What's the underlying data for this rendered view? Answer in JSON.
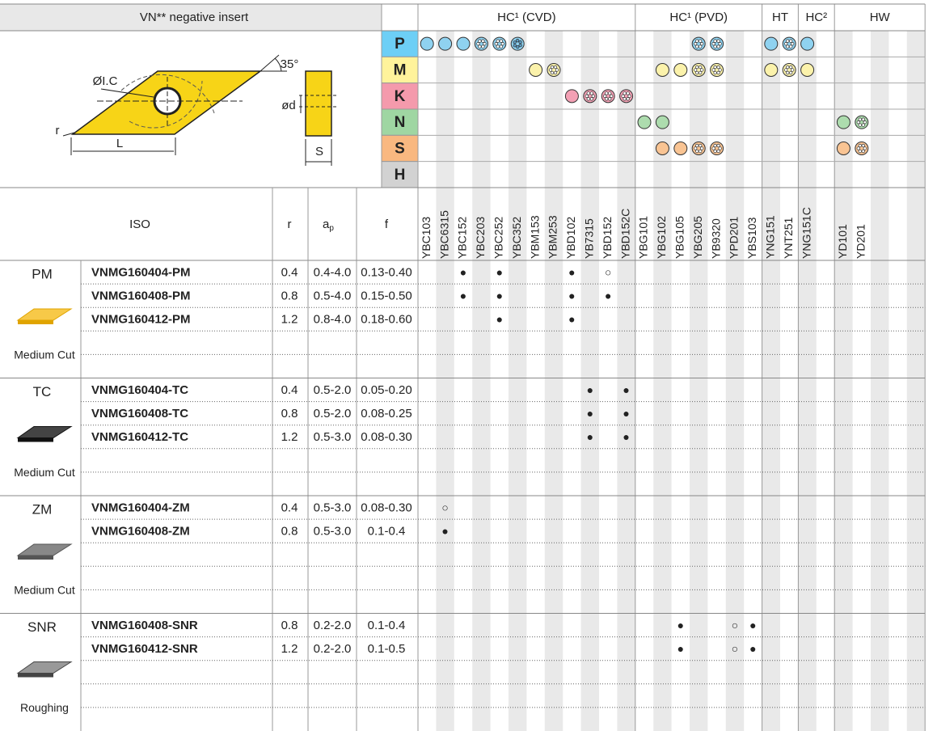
{
  "header": {
    "title": "VN** negative insert"
  },
  "diagram": {
    "ic": "ØI.C",
    "angle": "35°",
    "d": "ød",
    "r": "r",
    "L": "L",
    "S": "S"
  },
  "materials": [
    "P",
    "M",
    "K",
    "N",
    "S",
    "H"
  ],
  "grade_groups": [
    "HC¹ (CVD)",
    "HC¹ (PVD)",
    "HT",
    "HC²",
    "HW"
  ],
  "grades": [
    "YBC103",
    "YBC6315",
    "YBC152",
    "YBC203",
    "YBC252",
    "YBC352",
    "YBM153",
    "YBM253",
    "YBD102",
    "YB7315",
    "YBD152",
    "YBD152C",
    "YBG101",
    "YBG102",
    "YBG105",
    "YBG205",
    "YB9320",
    "YPD201",
    "YBS103",
    "YNG151",
    "YNT251",
    "YNG151C",
    null,
    "YD101",
    "YD201",
    null,
    null,
    null
  ],
  "columns": {
    "iso": "ISO",
    "r": "r",
    "ap": {
      "main": "a",
      "sub": "p"
    },
    "f": "f"
  },
  "groups": [
    {
      "name": "PM",
      "caption": "Medium Cut",
      "rows": [
        {
          "iso": "VNMG160404-PM",
          "r": 0.4,
          "ap": "0.4-4.0",
          "f": "0.13-0.40",
          "marks": {
            "YBC152": "●",
            "YBC252": "●",
            "YBD102": "●",
            "YBD152": "○"
          }
        },
        {
          "iso": "VNMG160408-PM",
          "r": 0.8,
          "ap": "0.5-4.0",
          "f": "0.15-0.50",
          "marks": {
            "YBC152": "●",
            "YBC252": "●",
            "YBD102": "●",
            "YBD152": "●"
          }
        },
        {
          "iso": "VNMG160412-PM",
          "r": 1.2,
          "ap": "0.8-4.0",
          "f": "0.18-0.60",
          "marks": {
            "YBC252": "●",
            "YBD102": "●"
          }
        }
      ]
    },
    {
      "name": "TC",
      "caption": "Medium Cut",
      "rows": [
        {
          "iso": "VNMG160404-TC",
          "r": 0.4,
          "ap": "0.5-2.0",
          "f": "0.05-0.20",
          "marks": {
            "YB7315": "●",
            "YBD152C": "●"
          }
        },
        {
          "iso": "VNMG160408-TC",
          "r": 0.8,
          "ap": "0.5-2.0",
          "f": "0.08-0.25",
          "marks": {
            "YB7315": "●",
            "YBD152C": "●"
          }
        },
        {
          "iso": "VNMG160412-TC",
          "r": 1.2,
          "ap": "0.5-3.0",
          "f": "0.08-0.30",
          "marks": {
            "YB7315": "●",
            "YBD152C": "●"
          }
        }
      ]
    },
    {
      "name": "ZM",
      "caption": "Medium Cut",
      "rows": [
        {
          "iso": "VNMG160404-ZM",
          "r": 0.4,
          "ap": "0.5-3.0",
          "f": "0.08-0.30",
          "marks": {
            "YBC6315": "○"
          }
        },
        {
          "iso": "VNMG160408-ZM",
          "r": 0.8,
          "ap": "0.5-3.0",
          "f": "0.1-0.4",
          "marks": {
            "YBC6315": "●"
          }
        }
      ]
    },
    {
      "name": "SNR",
      "caption": "Roughing",
      "rows": [
        {
          "iso": "VNMG160408-SNR",
          "r": 0.8,
          "ap": "0.2-2.0",
          "f": "0.1-0.4",
          "marks": {
            "YBG105": "●",
            "YPD201": "○",
            "YBS103": "●"
          }
        },
        {
          "iso": "VNMG160412-SNR",
          "r": 1.2,
          "ap": "0.2-2.0",
          "f": "0.1-0.5",
          "marks": {
            "YBG105": "●",
            "YPD201": "○",
            "YBS103": "●"
          }
        }
      ]
    }
  ]
}
